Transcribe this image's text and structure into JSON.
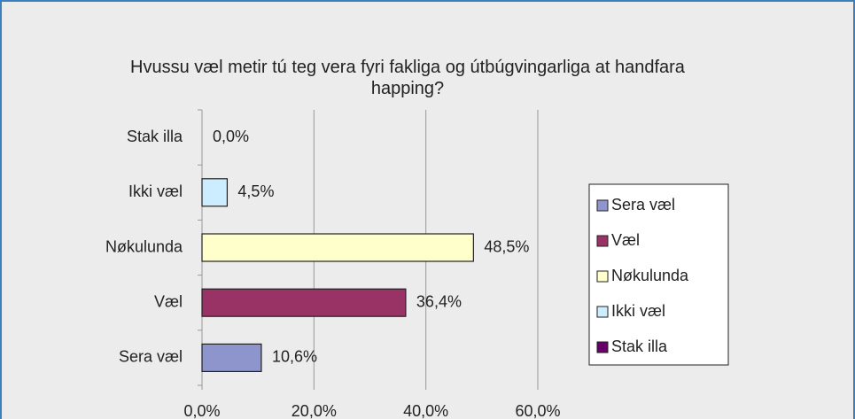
{
  "chart_data": {
    "type": "hbar",
    "title": "Hvussu væl metir tú teg vera fyri fakliga og útbúgvingarliga at handfara happing?",
    "categories": [
      "Sera væl",
      "Væl",
      "Nøkulunda",
      "Ikki væl",
      "Stak illa"
    ],
    "values": [
      10.6,
      36.4,
      48.5,
      4.5,
      0.0
    ],
    "value_labels": [
      "10,6%",
      "36,4%",
      "48,5%",
      "4,5%",
      "0,0%"
    ],
    "colors": [
      "#8e95cc",
      "#993366",
      "#ffffcc",
      "#ccecff",
      "#660066"
    ],
    "xlim": [
      0,
      60
    ],
    "xticks": [
      {
        "value": 0,
        "label": "0,0%"
      },
      {
        "value": 20,
        "label": "20,0%"
      },
      {
        "value": 40,
        "label": "40,0%"
      },
      {
        "value": 60,
        "label": "60,0%"
      }
    ],
    "grid": true,
    "legend": "right"
  }
}
